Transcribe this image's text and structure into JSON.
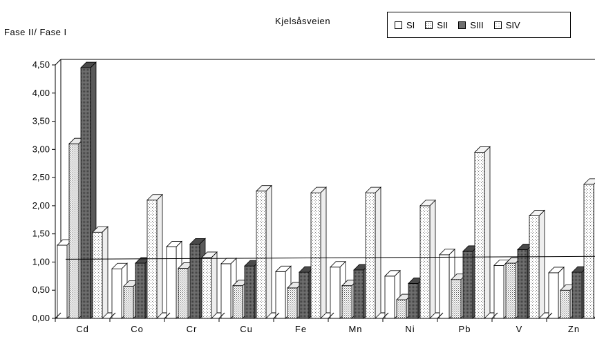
{
  "chart_data": {
    "type": "bar",
    "title": "Kjelsåsveien",
    "ylabel": "Fase II/ Fase I",
    "xlabel": "",
    "categories": [
      "Cd",
      "Co",
      "Cr",
      "Cu",
      "Fe",
      "Mn",
      "Ni",
      "Pb",
      "V",
      "Zn"
    ],
    "series": [
      {
        "name": "SI",
        "values": [
          1.3,
          0.88,
          1.27,
          0.97,
          0.83,
          0.91,
          0.75,
          1.13,
          0.94,
          0.81
        ],
        "pattern": "none",
        "color": "#ffffff"
      },
      {
        "name": "SII",
        "values": [
          3.1,
          0.57,
          0.89,
          0.58,
          0.54,
          0.58,
          0.33,
          0.69,
          0.98,
          0.5
        ],
        "pattern": "dots",
        "color": "#c8c8c8"
      },
      {
        "name": "SIII",
        "values": [
          4.45,
          0.98,
          1.32,
          0.93,
          0.82,
          0.86,
          0.62,
          1.19,
          1.22,
          0.82
        ],
        "pattern": "dense",
        "color": "#808080"
      },
      {
        "name": "SIV",
        "values": [
          1.53,
          2.1,
          1.08,
          2.26,
          2.23,
          2.23,
          2.0,
          2.95,
          1.82,
          2.38
        ],
        "pattern": "sparse",
        "color": "#f0f0f0"
      }
    ],
    "ylim": [
      0,
      4.5
    ],
    "yticks": [
      "0,00",
      "0,50",
      "1,00",
      "1,50",
      "2,00",
      "2,50",
      "3,00",
      "3,50",
      "4,00",
      "4,50"
    ],
    "reference_line": {
      "start": 1.05,
      "end": 1.1
    },
    "legend_position": "top-right",
    "grid": false
  }
}
